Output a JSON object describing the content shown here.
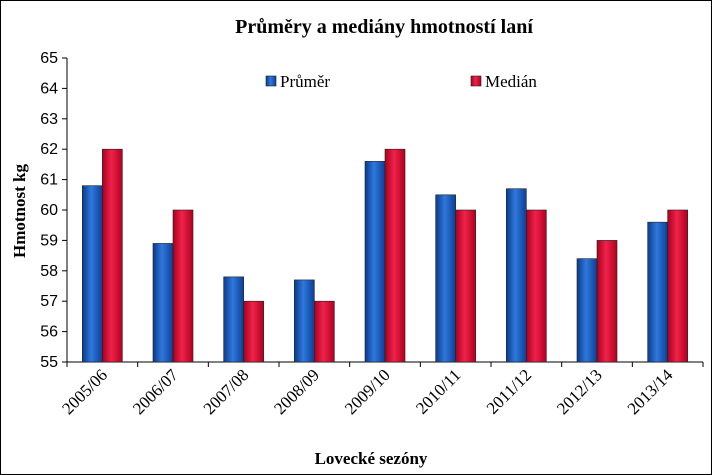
{
  "colors": {
    "series_1": "#1f5fbf",
    "series_2": "#e0143c"
  },
  "chart_data": {
    "type": "bar",
    "title": "Průměry a mediány hmotností laní",
    "xlabel": "Lovecké sezóny",
    "ylabel": "Hmotnost kg",
    "ylim": [
      55,
      65
    ],
    "yticks": [
      55,
      56,
      57,
      58,
      59,
      60,
      61,
      62,
      63,
      64,
      65
    ],
    "grid": false,
    "legend_position": "top",
    "categories": [
      "2005/06",
      "2006/07",
      "2007/08",
      "2008/09",
      "2009/10",
      "2010/11",
      "2011/12",
      "2012/13",
      "2013/14"
    ],
    "series": [
      {
        "name": "Průměr",
        "values": [
          60.8,
          58.9,
          57.8,
          57.7,
          61.6,
          60.5,
          60.7,
          58.4,
          59.6
        ]
      },
      {
        "name": "Medián",
        "values": [
          62.0,
          60.0,
          57.0,
          57.0,
          62.0,
          60.0,
          60.0,
          59.0,
          60.0
        ]
      }
    ]
  }
}
